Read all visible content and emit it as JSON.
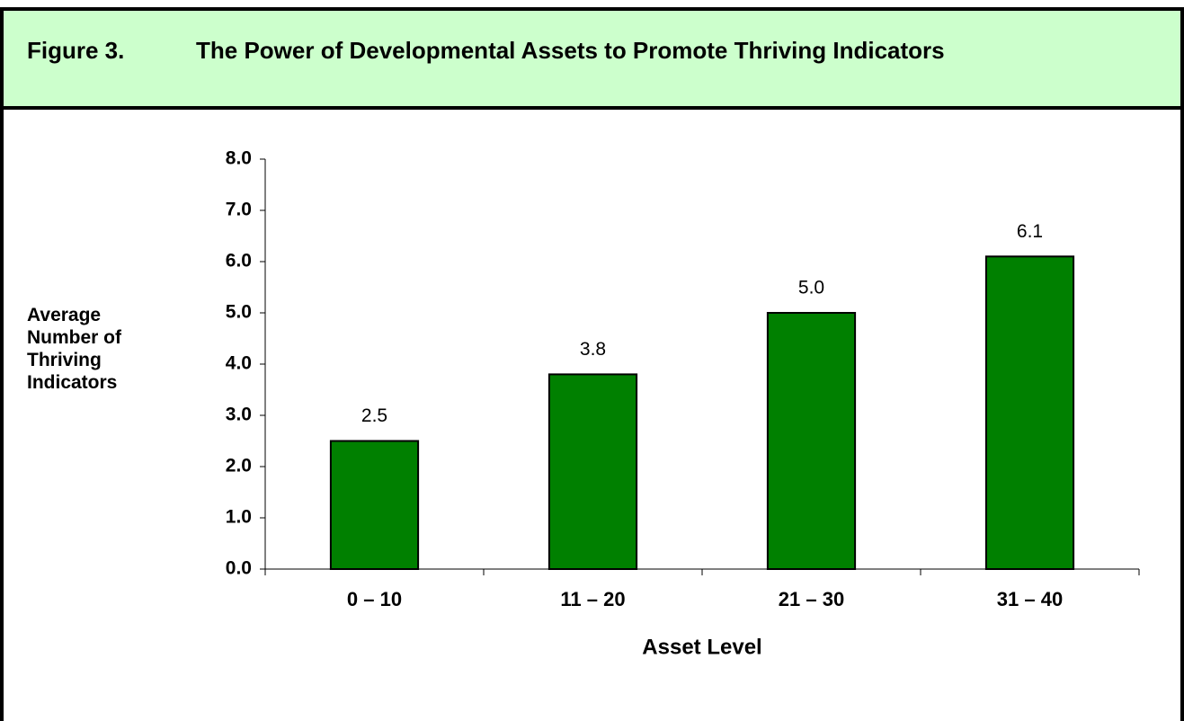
{
  "chart_data": {
    "type": "bar",
    "figure_label": "Figure 3.",
    "title": "The Power of Developmental Assets to Promote Thriving Indicators",
    "y_label": "Average Number of Thriving Indicators",
    "x_label": "Asset Level",
    "categories": [
      "0 – 10",
      "11 – 20",
      "21 – 30",
      "31 – 40"
    ],
    "values": [
      2.5,
      3.8,
      5.0,
      6.1
    ],
    "value_labels": [
      "2.5",
      "3.8",
      "5.0",
      "6.1"
    ],
    "color": "#008000",
    "ylim": [
      0,
      8
    ],
    "yticks": [
      {
        "value": 0,
        "label": "0.0"
      },
      {
        "value": 1,
        "label": "1.0"
      },
      {
        "value": 2,
        "label": "2.0"
      },
      {
        "value": 3,
        "label": "3.0"
      },
      {
        "value": 4,
        "label": "4.0"
      },
      {
        "value": 5,
        "label": "5.0"
      },
      {
        "value": 6,
        "label": "6.0"
      },
      {
        "value": 7,
        "label": "7.0"
      },
      {
        "value": 8,
        "label": "8.0"
      }
    ],
    "grid": false
  }
}
